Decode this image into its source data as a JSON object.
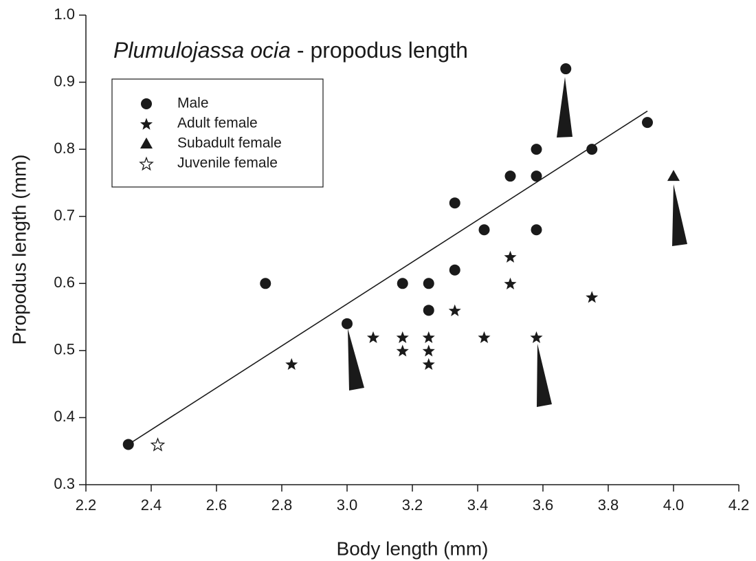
{
  "chart_data": {
    "type": "scatter",
    "title": [
      "Plumulojassa ocia",
      "- propodus length"
    ],
    "xlabel": "Body length (mm)",
    "ylabel": "Propodus length (mm)",
    "xlim": [
      2.2,
      4.2
    ],
    "ylim": [
      0.3,
      1.0
    ],
    "xticks": [
      2.2,
      2.4,
      2.6,
      2.8,
      {
        "value": 3,
        "label": "3.0"
      },
      3.2,
      3.4,
      3.6,
      3.8,
      {
        "value": 4,
        "label": "4.0"
      },
      4.2
    ],
    "yticks": [
      0.3,
      0.4,
      0.5,
      0.6,
      0.7,
      0.8,
      0.9,
      {
        "value": 1,
        "label": "1.0"
      }
    ],
    "legend": "upper left",
    "series": [
      {
        "name": "Male",
        "marker": "circle",
        "color": "#1a1a1a",
        "x": [
          2.33,
          2.75,
          3.0,
          3.17,
          3.25,
          3.25,
          3.33,
          3.33,
          3.42,
          3.5,
          3.58,
          3.58,
          3.58,
          3.67,
          3.75,
          3.92
        ],
        "values": [
          0.36,
          0.6,
          0.54,
          0.6,
          0.6,
          0.56,
          0.72,
          0.62,
          0.68,
          0.76,
          0.8,
          0.76,
          0.68,
          0.92,
          0.8,
          0.84
        ]
      },
      {
        "name": "Adult female",
        "marker": "star",
        "color": "#1a1a1a",
        "x": [
          2.83,
          3.08,
          3.17,
          3.17,
          3.25,
          3.25,
          3.25,
          3.33,
          3.42,
          3.5,
          3.5,
          3.58,
          3.75
        ],
        "values": [
          0.48,
          0.52,
          0.52,
          0.5,
          0.52,
          0.5,
          0.48,
          0.56,
          0.52,
          0.64,
          0.6,
          0.52,
          0.58
        ]
      },
      {
        "name": "Subadult female",
        "marker": "triangle",
        "color": "#1a1a1a",
        "x": [
          4.0
        ],
        "values": [
          0.76
        ]
      },
      {
        "name": "Juvenile female",
        "marker": "star-open",
        "color": "#1a1a1a",
        "x": [
          2.42
        ],
        "values": [
          0.36
        ]
      }
    ],
    "fit": {
      "x": [
        2.33,
        3.92
      ],
      "values": [
        0.36,
        0.857
      ]
    }
  }
}
